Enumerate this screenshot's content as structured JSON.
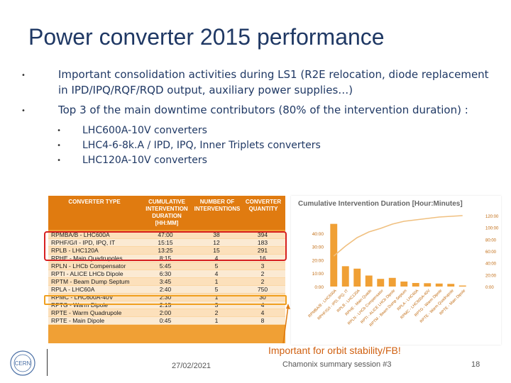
{
  "title": "Power converter 2015 performance",
  "bullets": [
    "Important consolidation activities during LS1 (R2E relocation, diode replacement in IPD/IPQ/RQF/RQD output, auxiliary power supplies…)",
    "Top 3 of the main downtime contributors (80% of the intervention duration) :"
  ],
  "sub_bullets": [
    "LHC600A-10V converters",
    "LHC4-6-8k.A / IPD, IPQ, Inner Triplets converters",
    "LHC120A-10V converters"
  ],
  "table": {
    "headers": [
      "CONVERTER TYPE",
      "CUMULATIVE\nINTERVENTION\nDURATION\n[HH:MM]",
      "NUMBER OF\nINTERVENTIONS",
      "CONVERTER\nQUANTITY"
    ],
    "rows": [
      [
        "RPMBA/B - LHC600A",
        "47:00",
        "38",
        "394"
      ],
      [
        "RPHF/G/I - IPD, IPQ, IT",
        "15:15",
        "12",
        "183"
      ],
      [
        "RPLB - LHC120A",
        "13:25",
        "15",
        "291"
      ],
      [
        "RPHE - Main Quadrupoles",
        "8:15",
        "4",
        "16"
      ],
      [
        "RPLN - LHCb Compensator",
        "5:45",
        "5",
        "3"
      ],
      [
        "RPTI - ALICE LHCb Dipole",
        "6:30",
        "4",
        "2"
      ],
      [
        "RPTM - Beam Dump Septum",
        "3:45",
        "1",
        "2"
      ],
      [
        "RPLA - LHC60A",
        "2:40",
        "5",
        "750"
      ],
      [
        "RPMC - LHC600A-40V",
        "2:30",
        "1",
        "30"
      ],
      [
        "RPTG - Warm Dipole",
        "2:15",
        "3",
        "4"
      ],
      [
        "RPTE - Warm Quadrupole",
        "2:00",
        "2",
        "4"
      ],
      [
        "RPTE - Main Dipole",
        "0:45",
        "1",
        "8"
      ]
    ]
  },
  "chart_data": {
    "type": "bar",
    "title": "Cumulative Intervention Duration [Hour:Minutes]",
    "categories": [
      "RPMBA/B - LHC600A",
      "RPHF/G/I - IPD, IPQ, IT",
      "RPLB - LHC120A",
      "RPHE - Main Quads",
      "RPLN - LHCb Compensator",
      "RPTI - ALICE LHCb Dipole",
      "RPTM - Beam Dump Septum",
      "RPLA - LHC60A",
      "RPMC - LHC600A-40V",
      "RPTG - Warm Dipole",
      "RPTE - Warm Quadrupole",
      "RPTE - Main Dipole"
    ],
    "values": [
      47.0,
      15.25,
      13.42,
      8.25,
      5.75,
      6.5,
      3.75,
      2.67,
      2.5,
      2.25,
      2.0,
      0.75
    ],
    "cumulative_pct": [
      43,
      57,
      69,
      77,
      82,
      88,
      92,
      94,
      96,
      98,
      99,
      100
    ],
    "left_ticks": [
      "40:00",
      "30:00",
      "20:00",
      "10:00",
      "0:00"
    ],
    "right_ticks": [
      "120:00",
      "100:00",
      "80:00",
      "60:00",
      "40:00",
      "20:00",
      "0:00"
    ],
    "bar_color": "#f0a035",
    "line_color": "#f0c080"
  },
  "note": "Important for orbit stability/FB!",
  "footer": {
    "date": "27/02/2021",
    "session": "Chamonix summary session #3",
    "page": "18",
    "logo_text": "CERN"
  },
  "colors": {
    "title": "#1f3864",
    "table_header": "#e07b10",
    "highlight_red": "#d72020",
    "highlight_orange": "#f0a020",
    "note": "#d06010"
  }
}
